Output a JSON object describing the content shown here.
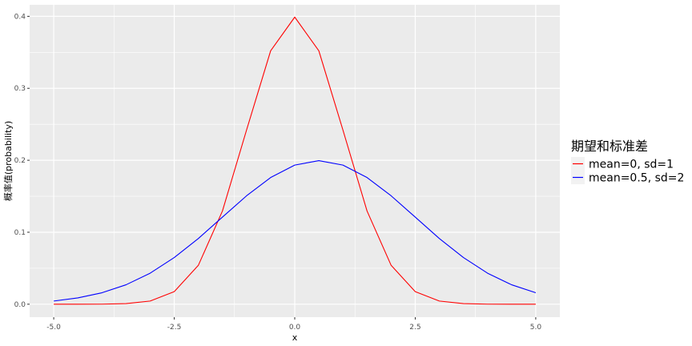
{
  "chart_data": {
    "type": "line",
    "title": "",
    "xlabel": "x",
    "ylabel": "概率值(probability)",
    "xlim": [
      -5.0,
      5.0
    ],
    "ylim": [
      0.0,
      0.4
    ],
    "x_ticks": [
      -5.0,
      -2.5,
      0.0,
      2.5,
      5.0
    ],
    "x_tick_labels": [
      "-5.0",
      "-2.5",
      "0.0",
      "2.5",
      "5.0"
    ],
    "y_ticks": [
      0.0,
      0.1,
      0.2,
      0.3,
      0.4
    ],
    "y_tick_labels": [
      "0.0",
      "0.1",
      "0.2",
      "0.3",
      "0.4"
    ],
    "grid": true,
    "legend": {
      "title": "期望和标准差",
      "position": "right"
    },
    "series": [
      {
        "name": "mean=0, sd=1",
        "color": "#ff0000",
        "x": [
          -5.0,
          -4.5,
          -4.0,
          -3.5,
          -3.0,
          -2.5,
          -2.0,
          -1.5,
          -1.0,
          -0.5,
          0.0,
          0.5,
          1.0,
          1.5,
          2.0,
          2.5,
          3.0,
          3.5,
          4.0,
          4.5,
          5.0
        ],
        "y": [
          0.0,
          0.0,
          0.0001,
          0.0009,
          0.0044,
          0.0175,
          0.054,
          0.1295,
          0.242,
          0.3521,
          0.3989,
          0.3521,
          0.242,
          0.1295,
          0.054,
          0.0175,
          0.0044,
          0.0009,
          0.0001,
          0.0,
          0.0
        ]
      },
      {
        "name": "mean=0.5, sd=2",
        "color": "#0000ff",
        "x": [
          -5.0,
          -4.5,
          -4.0,
          -3.5,
          -3.0,
          -2.5,
          -2.0,
          -1.5,
          -1.0,
          -0.5,
          0.0,
          0.5,
          1.0,
          1.5,
          2.0,
          2.5,
          3.0,
          3.5,
          4.0,
          4.5,
          5.0
        ],
        "y": [
          0.0044,
          0.0088,
          0.0159,
          0.027,
          0.0431,
          0.0648,
          0.0913,
          0.121,
          0.1506,
          0.176,
          0.1933,
          0.1995,
          0.1933,
          0.176,
          0.1506,
          0.121,
          0.0913,
          0.0648,
          0.0431,
          0.027,
          0.0159
        ]
      }
    ]
  }
}
